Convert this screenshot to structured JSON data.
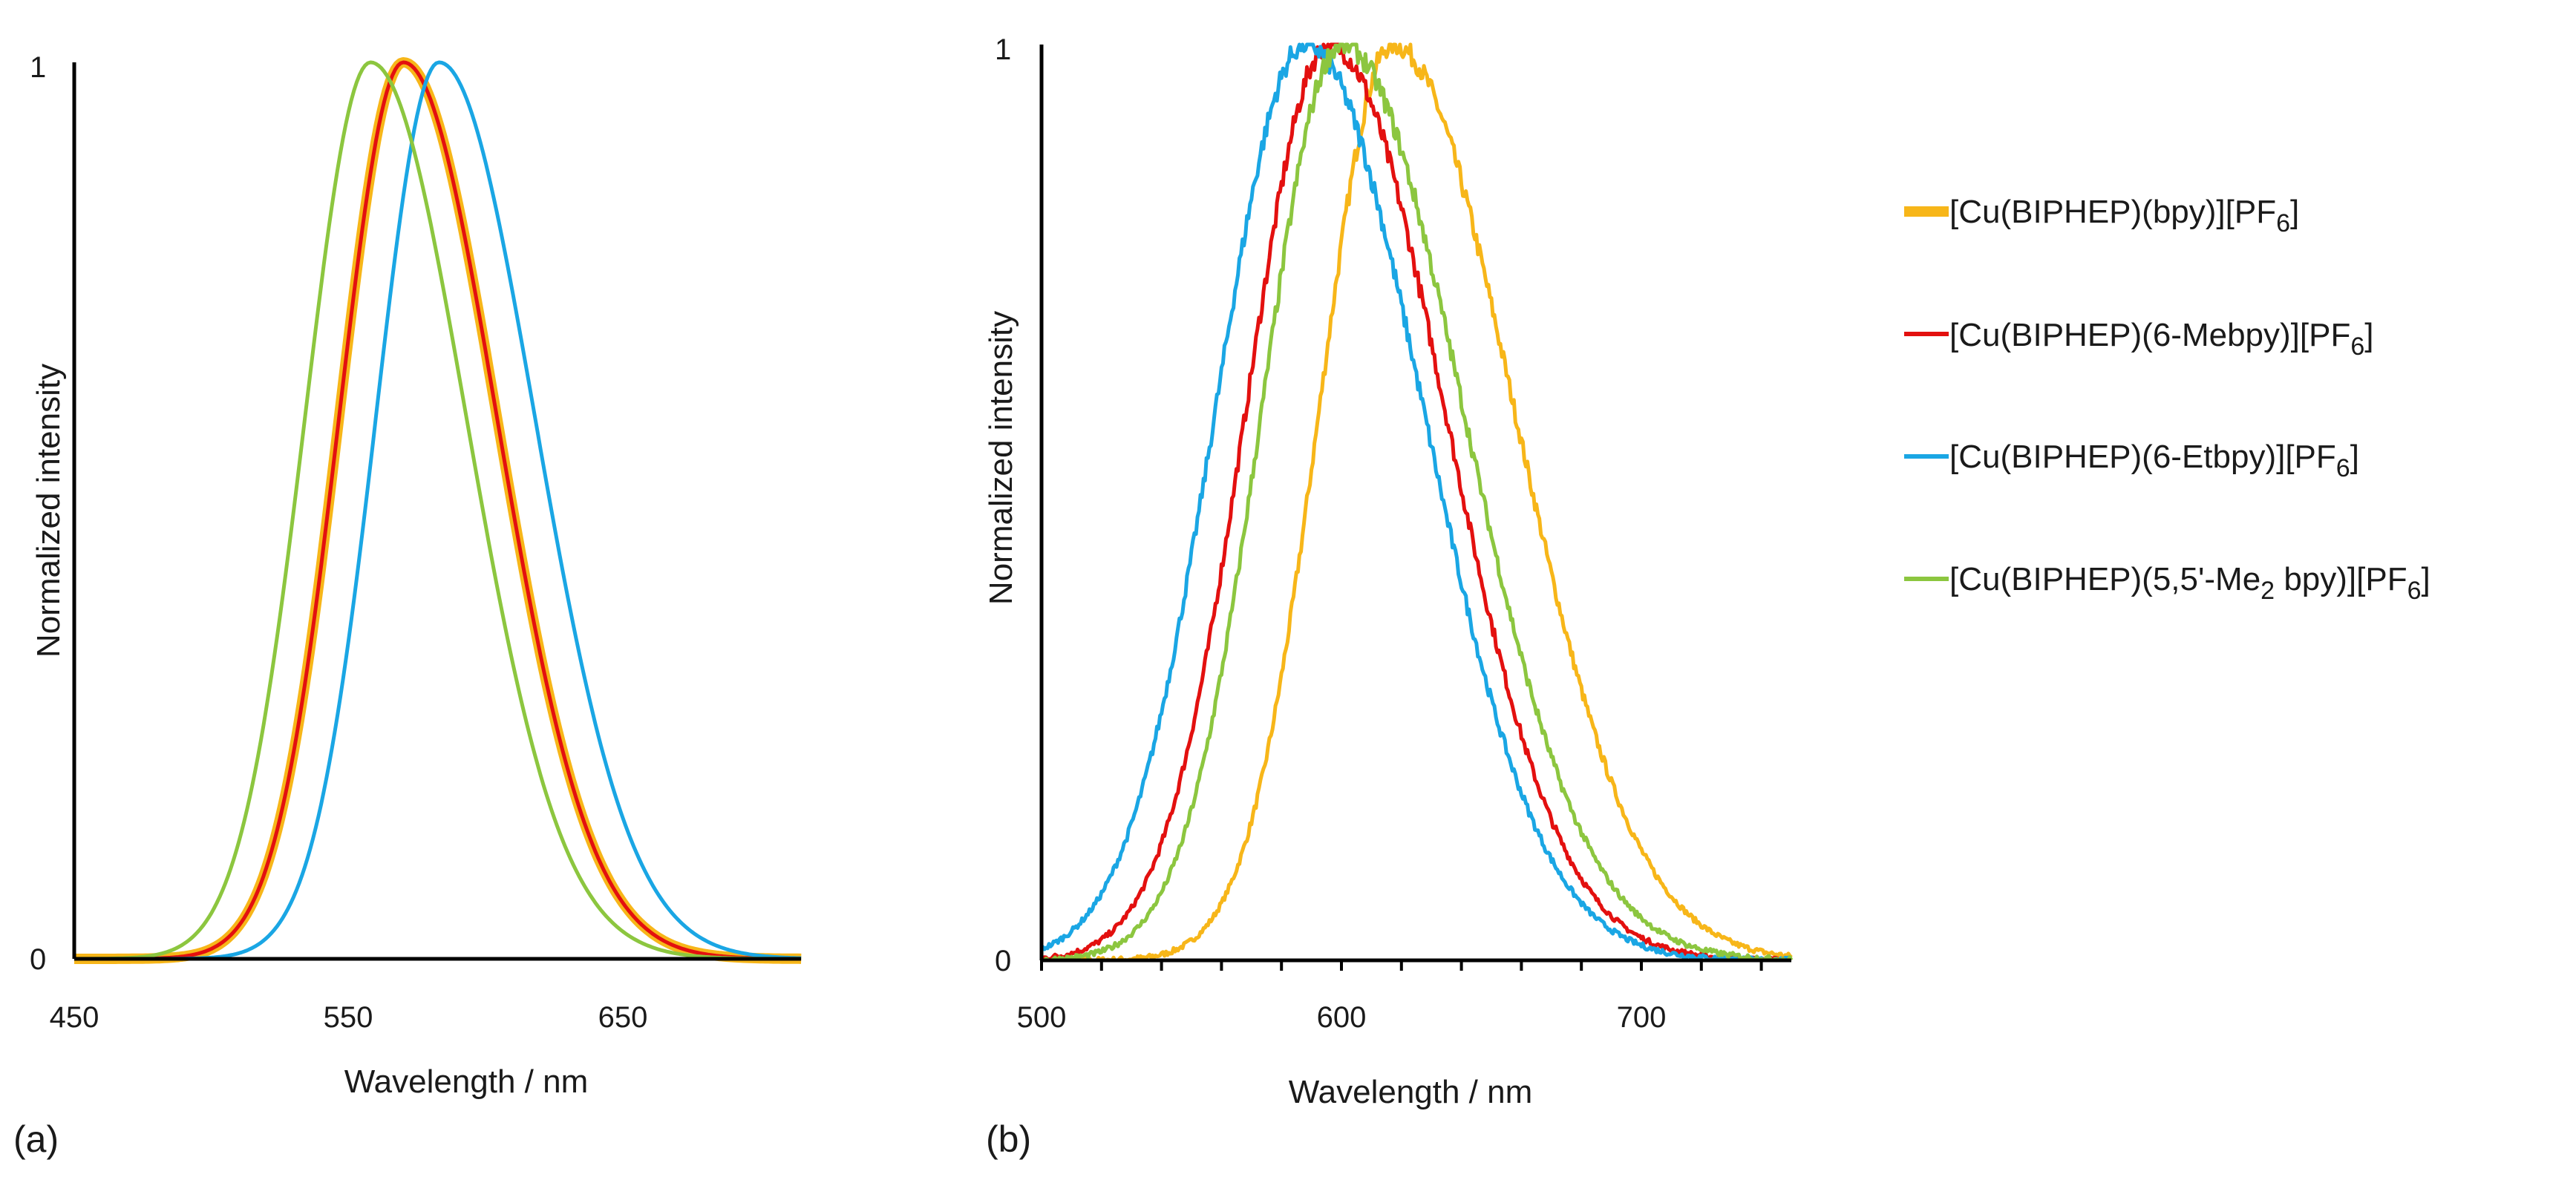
{
  "chart_data": [
    {
      "panel": "(a)",
      "type": "line",
      "xlabel": "Wavelength / nm",
      "ylabel": "Normalized intensity",
      "xlim": [
        450,
        715
      ],
      "ylim": [
        0,
        1
      ],
      "xticks": [
        450,
        550,
        650
      ],
      "yticks": [
        0,
        1
      ],
      "grid": false,
      "series": [
        {
          "name": "[Cu(BIPHEP)(bpy)][PF6]",
          "color": "#f7b619",
          "width": 14,
          "peak": 570,
          "fwhm_left": 55,
          "fwhm_right": 80
        },
        {
          "name": "[Cu(BIPHEP)(6-Mebpy)][PF6]",
          "color": "#e3100f",
          "width": 5,
          "peak": 570,
          "fwhm_left": 55,
          "fwhm_right": 80
        },
        {
          "name": "[Cu(BIPHEP)(6-Etbpy)][PF6]",
          "color": "#1aa6e4",
          "width": 5,
          "peak": 583,
          "fwhm_left": 54,
          "fwhm_right": 82
        },
        {
          "name": "[Cu(BIPHEP)(5,5'-Me2 bpy)][PF6]",
          "color": "#8cc63f",
          "width": 5,
          "peak": 558,
          "fwhm_left": 56,
          "fwhm_right": 82
        }
      ]
    },
    {
      "panel": "(b)",
      "type": "line",
      "xlabel": "Wavelength / nm",
      "ylabel": "Normalized intensity",
      "xlim": [
        500,
        750
      ],
      "ylim": [
        0,
        1
      ],
      "xticks": [
        500,
        600,
        700
      ],
      "yticks": [
        0,
        1
      ],
      "grid": false,
      "series": [
        {
          "name": "[Cu(BIPHEP)(bpy)][PF6]",
          "color": "#f7b619",
          "width": 5,
          "peak": 617,
          "fwhm_left": 57,
          "fwhm_right": 95
        },
        {
          "name": "[Cu(BIPHEP)(6-Mebpy)][PF6]",
          "color": "#e3100f",
          "width": 5,
          "peak": 596,
          "fwhm_left": 65,
          "fwhm_right": 90
        },
        {
          "name": "[Cu(BIPHEP)(6-Etbpy)][PF6]",
          "color": "#1aa6e4",
          "width": 5,
          "peak": 588,
          "fwhm_left": 70,
          "fwhm_right": 92
        },
        {
          "name": "[Cu(BIPHEP)(5,5'-Me2 bpy)][PF6]",
          "color": "#8cc63f",
          "width": 5,
          "peak": 600,
          "fwhm_left": 62,
          "fwhm_right": 95
        }
      ]
    }
  ],
  "legend": {
    "items": [
      {
        "prefix": "[Cu(BIPHEP)(bpy)][PF",
        "sub": "6",
        "suffix": "]",
        "color": "#f7b619"
      },
      {
        "prefix": "[Cu(BIPHEP)(6-Mebpy)][PF",
        "sub": "6",
        "suffix": "]",
        "color": "#e3100f"
      },
      {
        "prefix": "[Cu(BIPHEP)(6-Etbpy)][PF",
        "sub": "6",
        "suffix": "]",
        "color": "#1aa6e4"
      },
      {
        "prefix": "[Cu(BIPHEP)(5,5'-Me",
        "sub": "2",
        "suffix": " bpy)][PF",
        "sub2": "6",
        "suffix2": "]",
        "color": "#8cc63f"
      }
    ]
  },
  "panel_labels": {
    "a": "(a)",
    "b": "(b)"
  }
}
